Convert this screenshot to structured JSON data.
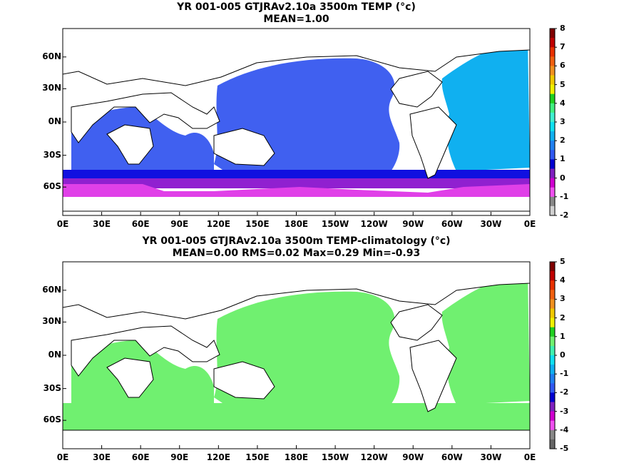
{
  "panels": [
    {
      "title": "YR 001-005 GTJRAv2.10a 3500m TEMP (°c)",
      "subtitle": "MEAN=1.00",
      "colorbar_ticks": [
        "8",
        "7",
        "6",
        "5",
        "4",
        "3",
        "2",
        "1",
        "0",
        "-1",
        "-2"
      ],
      "colorbar_colors": [
        "#800000",
        "#c00000",
        "#e83000",
        "#f06010",
        "#f09020",
        "#f0c800",
        "#f0f000",
        "#20d020",
        "#40f080",
        "#40f0d0",
        "#10e0f0",
        "#10b0f0",
        "#2080f0",
        "#3058f0",
        "#0000d0",
        "#8020c0",
        "#d000d0",
        "#f050f0",
        "#888888",
        "#d0d0d0"
      ]
    },
    {
      "title": "YR 001-005 GTJRAv2.10a 3500m TEMP-climatology (°c)",
      "subtitle": "MEAN=0.00   RMS=0.02   Max=0.29   Min=-0.93",
      "colorbar_ticks": [
        "5",
        "4",
        "3",
        "2",
        "1",
        "0",
        "-1",
        "-2",
        "-3",
        "-4",
        "-5"
      ],
      "colorbar_colors": [
        "#800000",
        "#c00000",
        "#e83000",
        "#f06010",
        "#f09020",
        "#f0c800",
        "#f0f000",
        "#20d020",
        "#70f070",
        "#40f0b0",
        "#10e0f0",
        "#10b0f0",
        "#2080f0",
        "#3058f0",
        "#0000d0",
        "#8020c0",
        "#d000d0",
        "#f050f0",
        "#888888",
        "#666666"
      ]
    }
  ],
  "lat_labels": [
    "60N",
    "30N",
    "0N",
    "30S",
    "60S"
  ],
  "lon_labels": [
    "0E",
    "30E",
    "60E",
    "90E",
    "120E",
    "150E",
    "180E",
    "150W",
    "120W",
    "90W",
    "60W",
    "30W",
    "0E"
  ],
  "field_colors": {
    "mean_deep": "#4060f0",
    "mean_light": "#10b0f0",
    "mean_mid": "#2890f0",
    "mean_blue": "#1010e0",
    "mean_purple": "#9020d0",
    "mean_magenta": "#e040e8",
    "anom_green": "#70f070",
    "anom_cyan": "#40f0b0",
    "land": "#ffffff"
  }
}
